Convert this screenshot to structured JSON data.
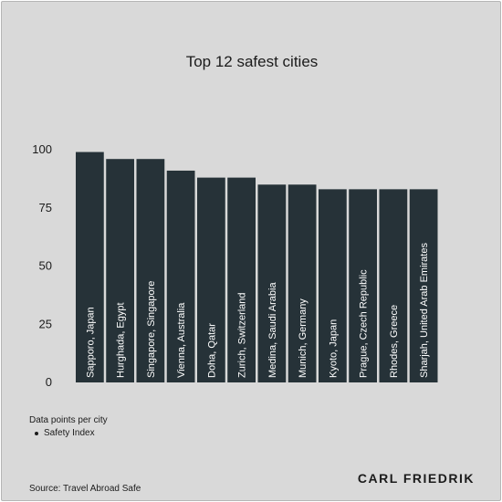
{
  "chart_data": {
    "type": "bar",
    "title": "Top 12 safest cities",
    "categories": [
      "Sapporo, Japan",
      "Hurghada, Egypt",
      "Singapore, Singapore",
      "Vienna, Australia",
      "Doha, Qatar",
      "Zurich, Switzerland",
      "Medina, Saudi Arabia",
      "Munich, Germany",
      "Kyoto, Japan",
      "Prague, Czech Republic",
      "Rhodes, Greece",
      "Sharjah, United Arab Emirates"
    ],
    "series": [
      {
        "name": "Safety Index",
        "values": [
          99,
          96,
          96,
          91,
          88,
          88,
          85,
          85,
          83,
          83,
          83,
          83
        ]
      }
    ],
    "ylim": [
      0,
      100
    ],
    "yticks": [
      "0",
      "25",
      "50",
      "75",
      "100"
    ],
    "grid": false,
    "bar_color": "#263238",
    "label_color": "#ffffff"
  },
  "legend": {
    "title": "Data points per city",
    "item": "Safety Index"
  },
  "source": "Source: Travel Abroad Safe",
  "brand": "CARL FRIEDRIK"
}
